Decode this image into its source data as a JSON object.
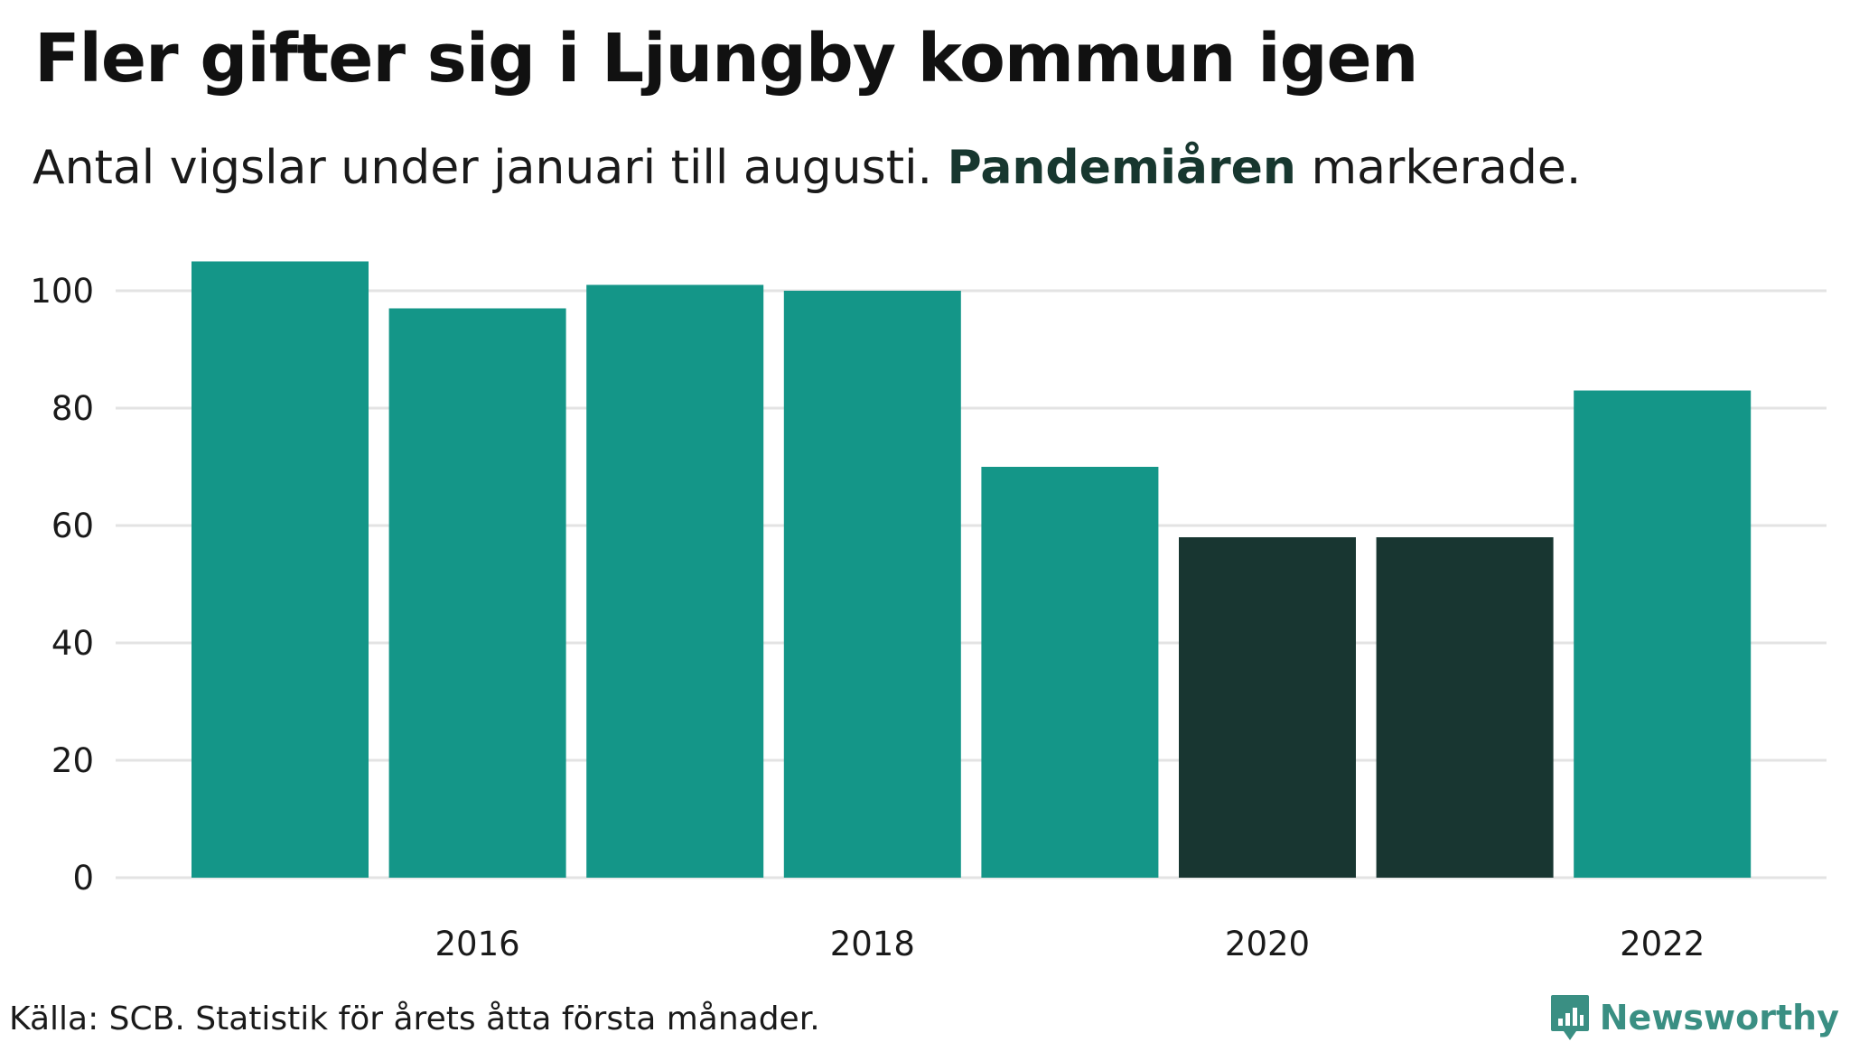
{
  "header": {
    "title": "Fler gifter sig i Ljungby kommun igen",
    "subtitle_before": "Antal vigslar under januari till augusti. ",
    "subtitle_highlight": "Pandemiåren",
    "subtitle_after": " markerade."
  },
  "footer": {
    "source": "Källa: SCB. Statistik för årets åtta första månader.",
    "brand": "Newsworthy"
  },
  "colors": {
    "bar": "#149688",
    "highlight": "#183631",
    "grid": "#e3e3e3",
    "brand": "#3a8f83"
  },
  "chart_data": {
    "type": "bar",
    "categories": [
      "2015",
      "2016",
      "2017",
      "2018",
      "2019",
      "2020",
      "2021",
      "2022"
    ],
    "values": [
      105,
      97,
      101,
      100,
      70,
      58,
      58,
      83
    ],
    "highlighted": [
      "2020",
      "2021"
    ],
    "x_tick_labels": [
      "2016",
      "2018",
      "2020",
      "2022"
    ],
    "y_ticks": [
      0,
      20,
      40,
      60,
      80,
      100
    ],
    "ylim": [
      0,
      110
    ],
    "grid": true,
    "legend": "none"
  }
}
